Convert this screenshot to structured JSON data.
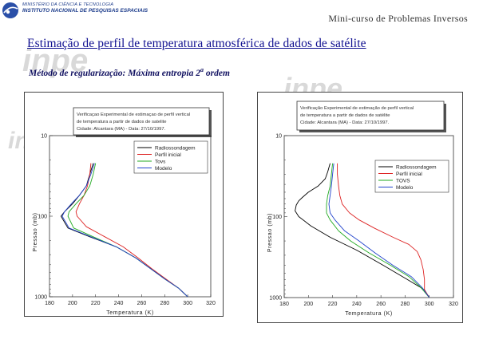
{
  "header": {
    "institute_line1": "MINISTÉRIO DA CIÊNCIA E TECNOLOGIA",
    "institute_line2": "INSTITUTO NACIONAL DE PESQUISAS ESPACIAIS",
    "course": "Mini-curso de Problemas Inversos"
  },
  "slide": {
    "title": "Estimação de perfil de temperatura atmosférica de dados de satélite",
    "subtitle_main": "Método de regularização: Máxima entropia 2",
    "subtitle_sup": "a",
    "subtitle_end": " ordem"
  },
  "watermark": {
    "text": "inpe"
  },
  "colors": {
    "radiossondagem": "#000000",
    "perfil_inicial": "#dd2222",
    "tovs": "#22aa22",
    "modelo": "#2244cc"
  },
  "chart_data": [
    {
      "type": "line",
      "title_lines": [
        "Verificaçao Experimental de estimaçao de perfil vertical",
        "de temperatura a partir de dados de satelite",
        "Cidade: Alcantara (MA) - Data: 27/10/1997."
      ],
      "xlabel": "Temperatura (K)",
      "ylabel": "Pressao (mb)",
      "xlim": [
        180,
        320
      ],
      "xticks": [
        "180",
        "200",
        "220",
        "240",
        "260",
        "280",
        "300",
        "320"
      ],
      "ylim": [
        10,
        1000
      ],
      "yscale": "log",
      "yticks": [
        "10",
        "100",
        "1000"
      ],
      "legend_position": "top-right",
      "series": [
        {
          "name": "Radiossondagem",
          "color": "#000000",
          "points": [
            [
              218,
              22
            ],
            [
              215,
              30
            ],
            [
              212,
              42
            ],
            [
              206,
              55
            ],
            [
              200,
              70
            ],
            [
              193,
              88
            ],
            [
              190,
              100
            ],
            [
              196,
              140
            ],
            [
              215,
              180
            ],
            [
              238,
              240
            ],
            [
              255,
              330
            ],
            [
              268,
              450
            ],
            [
              280,
              600
            ],
            [
              292,
              780
            ],
            [
              300,
              1000
            ]
          ]
        },
        {
          "name": "Perfil inicial",
          "color": "#dd2222",
          "points": [
            [
              216,
              22
            ],
            [
              215,
              30
            ],
            [
              213,
              42
            ],
            [
              210,
              55
            ],
            [
              206,
              70
            ],
            [
              203,
              88
            ],
            [
              204,
              100
            ],
            [
              212,
              135
            ],
            [
              228,
              180
            ],
            [
              244,
              240
            ],
            [
              257,
              330
            ],
            [
              269,
              450
            ],
            [
              281,
              600
            ],
            [
              292,
              780
            ],
            [
              300,
              1000
            ]
          ]
        },
        {
          "name": "Tovs",
          "color": "#22aa22",
          "points": [
            [
              220,
              22
            ],
            [
              218,
              30
            ],
            [
              215,
              42
            ],
            [
              210,
              55
            ],
            [
              203,
              70
            ],
            [
              197,
              88
            ],
            [
              196,
              100
            ],
            [
              201,
              140
            ],
            [
              218,
              180
            ],
            [
              238,
              240
            ],
            [
              255,
              330
            ],
            [
              268,
              450
            ],
            [
              280,
              600
            ],
            [
              292,
              780
            ],
            [
              300,
              1000
            ]
          ]
        },
        {
          "name": "Modelo",
          "color": "#2244cc",
          "points": [
            [
              219,
              22
            ],
            [
              216,
              30
            ],
            [
              212,
              42
            ],
            [
              206,
              55
            ],
            [
              199,
              70
            ],
            [
              193,
              88
            ],
            [
              191,
              100
            ],
            [
              197,
              140
            ],
            [
              216,
              180
            ],
            [
              238,
              240
            ],
            [
              255,
              330
            ],
            [
              268,
              450
            ],
            [
              280,
              600
            ],
            [
              292,
              780
            ],
            [
              300,
              1000
            ]
          ]
        }
      ]
    },
    {
      "type": "line",
      "title_lines": [
        "Verificação Experimental de estimação de perfil vertical",
        "de temperatura a partir de dados de satélite",
        "Cidade: Alcantara (MA) - Data: 27/10/1997."
      ],
      "xlabel": "Temperatura (K)",
      "ylabel": "Pressao (mb)",
      "xlim": [
        180,
        320
      ],
      "xticks": [
        "180",
        "200",
        "220",
        "240",
        "260",
        "280",
        "300",
        "320"
      ],
      "ylim": [
        10,
        1000
      ],
      "yscale": "log",
      "yticks": [
        "10",
        "100",
        "1000"
      ],
      "legend_position": "top-right",
      "series": [
        {
          "name": "Radiossondagem",
          "color": "#000000",
          "points": [
            [
              218,
              22
            ],
            [
              216,
              28
            ],
            [
              214,
              34
            ],
            [
              208,
              42
            ],
            [
              200,
              50
            ],
            [
              195,
              58
            ],
            [
              192,
              64
            ],
            [
              190,
              72
            ],
            [
              189,
              85
            ],
            [
              192,
              100
            ],
            [
              202,
              130
            ],
            [
              218,
              180
            ],
            [
              240,
              260
            ],
            [
              262,
              400
            ],
            [
              282,
              600
            ],
            [
              296,
              800
            ],
            [
              300,
              1000
            ]
          ]
        },
        {
          "name": "Perfil inicial",
          "color": "#dd2222",
          "points": [
            [
              224,
              22
            ],
            [
              224,
              30
            ],
            [
              225,
              42
            ],
            [
              226,
              55
            ],
            [
              228,
              70
            ],
            [
              234,
              90
            ],
            [
              242,
              110
            ],
            [
              255,
              140
            ],
            [
              270,
              180
            ],
            [
              283,
              220
            ],
            [
              290,
              270
            ],
            [
              293,
              340
            ],
            [
              295,
              450
            ],
            [
              296,
              600
            ],
            [
              296,
              800
            ],
            [
              300,
              1000
            ]
          ]
        },
        {
          "name": "TOVS",
          "color": "#22aa22",
          "points": [
            [
              220,
              22
            ],
            [
              219,
              30
            ],
            [
              218,
              42
            ],
            [
              216,
              55
            ],
            [
              215,
              70
            ],
            [
              215,
              90
            ],
            [
              218,
              110
            ],
            [
              225,
              150
            ],
            [
              235,
              200
            ],
            [
              250,
              280
            ],
            [
              268,
              400
            ],
            [
              283,
              550
            ],
            [
              293,
              750
            ],
            [
              300,
              1000
            ]
          ]
        },
        {
          "name": "Modelo",
          "color": "#2244cc",
          "points": [
            [
              221,
              22
            ],
            [
              220,
              30
            ],
            [
              219,
              42
            ],
            [
              218,
              55
            ],
            [
              217,
              70
            ],
            [
              218,
              90
            ],
            [
              222,
              110
            ],
            [
              230,
              150
            ],
            [
              242,
              200
            ],
            [
              255,
              280
            ],
            [
              270,
              400
            ],
            [
              285,
              550
            ],
            [
              294,
              750
            ],
            [
              300,
              1000
            ]
          ]
        }
      ]
    }
  ]
}
